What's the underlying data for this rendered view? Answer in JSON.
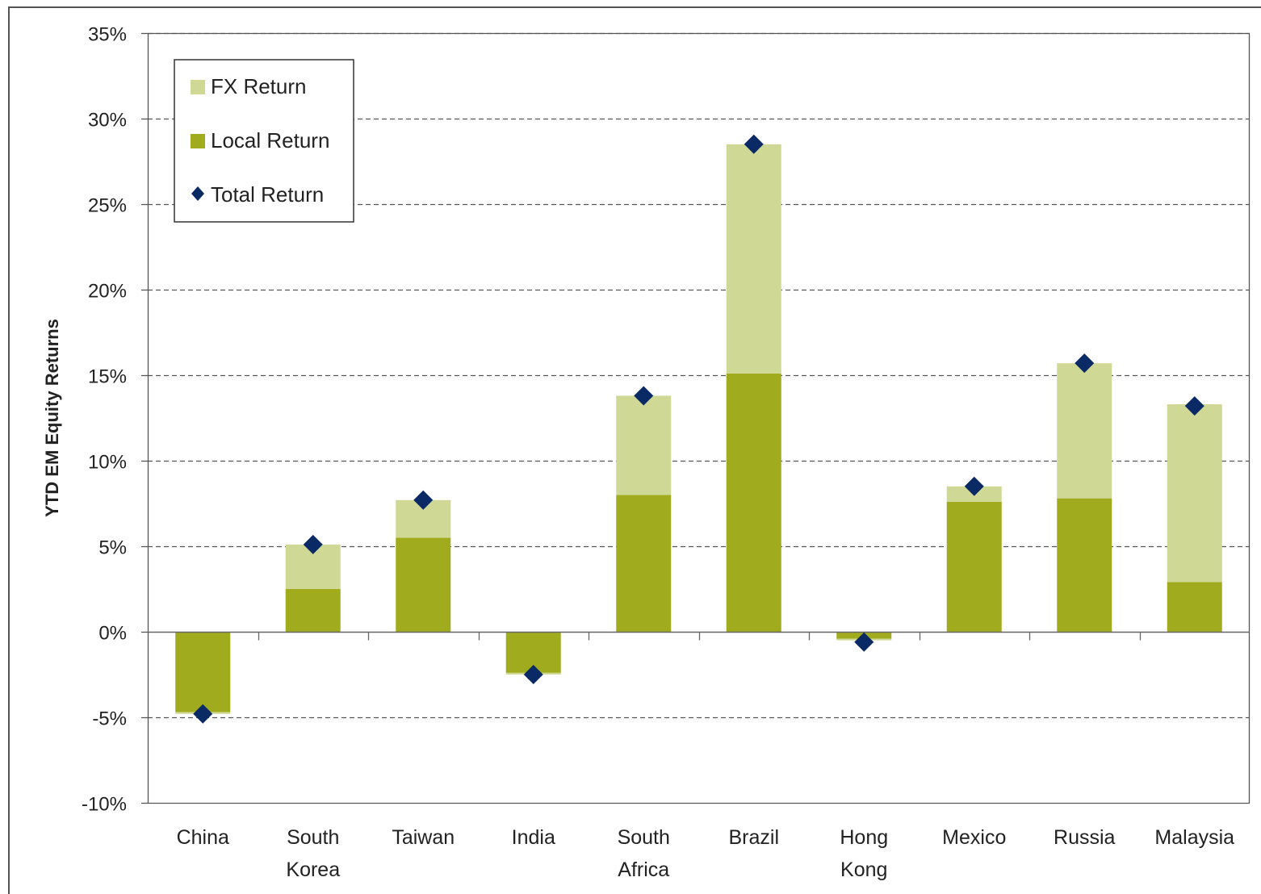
{
  "chart_data": {
    "type": "bar",
    "stacked": true,
    "ylabel": "YTD EM Equity Returns",
    "xlabel": "",
    "ylim": [
      -0.1,
      0.35
    ],
    "ytick_step": 0.05,
    "yticks": [
      "35%",
      "30%",
      "25%",
      "20%",
      "15%",
      "10%",
      "5%",
      "0%",
      "-5%",
      "-10%"
    ],
    "grid": "horizontal-dashed",
    "legend_position": "top-left",
    "categories": [
      [
        "China"
      ],
      [
        "South",
        "Korea"
      ],
      [
        "Taiwan"
      ],
      [
        "India"
      ],
      [
        "South",
        "Africa"
      ],
      [
        "Brazil"
      ],
      [
        "Hong",
        "Kong"
      ],
      [
        "Mexico"
      ],
      [
        "Russia"
      ],
      [
        "Malaysia"
      ]
    ],
    "series": [
      {
        "name": "FX Return",
        "kind": "bar",
        "color": "#d0d895",
        "values": [
          -0.001,
          0.026,
          0.022,
          -0.001,
          0.058,
          0.134,
          -0.001,
          0.009,
          0.079,
          0.104
        ]
      },
      {
        "name": "Local Return",
        "kind": "bar",
        "color": "#a0ab1e",
        "values": [
          -0.047,
          0.025,
          0.055,
          -0.024,
          0.08,
          0.151,
          -0.004,
          0.076,
          0.078,
          0.029
        ]
      },
      {
        "name": "Total Return",
        "kind": "marker",
        "color": "#0a2a66",
        "values": [
          -0.048,
          0.051,
          0.077,
          -0.025,
          0.138,
          0.285,
          -0.006,
          0.085,
          0.157,
          0.132
        ]
      }
    ]
  }
}
